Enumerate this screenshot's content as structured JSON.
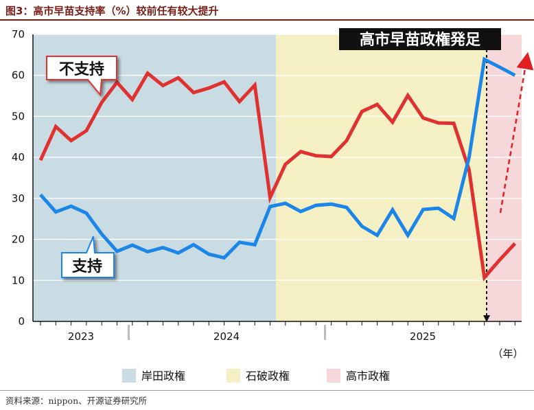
{
  "title": "图3：高市早苗支持率（%）较前任有较大提升",
  "source": "资料来源：nippon、开源证券研究所",
  "chart_data": {
    "type": "line",
    "ylim": [
      0,
      70
    ],
    "yticks": [
      0,
      10,
      20,
      30,
      40,
      50,
      60,
      70
    ],
    "year_labels": [
      "2023",
      "2024",
      "2025"
    ],
    "unit_label": "（年）",
    "x": [
      1,
      2,
      3,
      4,
      5,
      6,
      7,
      8,
      9,
      10,
      11,
      12,
      13,
      14,
      15,
      16,
      17,
      18,
      19,
      20,
      21,
      22,
      23,
      24,
      25,
      26,
      27,
      28,
      29,
      30,
      31,
      32
    ],
    "series": [
      {
        "name": "不支持",
        "color": "#e03131",
        "values": [
          39.3,
          47.5,
          44.1,
          46.5,
          53.4,
          58.3,
          54.1,
          60.5,
          57.5,
          59.4,
          55.8,
          56.9,
          58.4,
          53.6,
          57.6,
          30.2,
          38.3,
          41.4,
          40.4,
          40.2,
          44.1,
          51.2,
          52.9,
          48.6,
          55.1,
          49.6,
          48.4,
          48.3,
          37,
          10.7,
          15,
          19
        ]
      },
      {
        "name": "支持",
        "color": "#1c86e8",
        "values": [
          30.9,
          26.7,
          28.1,
          26.4,
          21.3,
          17.1,
          18.6,
          17,
          18,
          16.7,
          18.7,
          16.4,
          15.5,
          19.3,
          18.7,
          28,
          28.8,
          26.8,
          28.3,
          28.6,
          27.8,
          23.2,
          21,
          27.2,
          21,
          27.3,
          27.6,
          25.1,
          40,
          63.9,
          62,
          60
        ]
      }
    ],
    "periods": [
      {
        "label": "岸田政権",
        "color": "#c9dbe3"
      },
      {
        "label": "石破政権",
        "color": "#f5efc4"
      },
      {
        "label": "高市政権",
        "color": "#f7d8da"
      }
    ],
    "annotation": "高市早苗政権発足",
    "arrow_color": "#e02020"
  }
}
